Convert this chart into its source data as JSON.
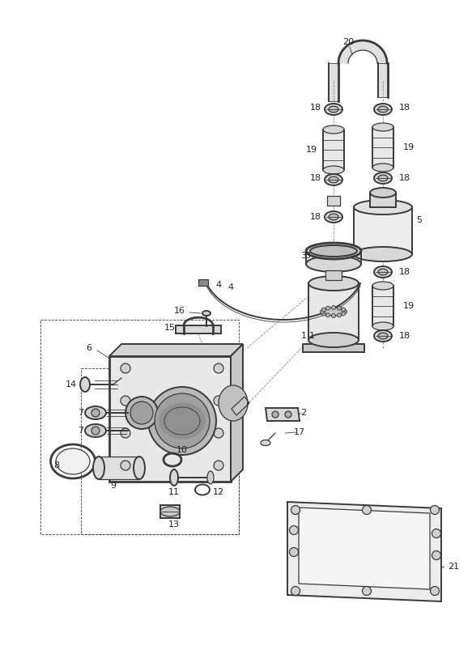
{
  "bg_color": "#ffffff",
  "lc": "#3a3a3a",
  "lc2": "#222222",
  "fig_w": 5.83,
  "fig_h": 8.24,
  "dpi": 100
}
